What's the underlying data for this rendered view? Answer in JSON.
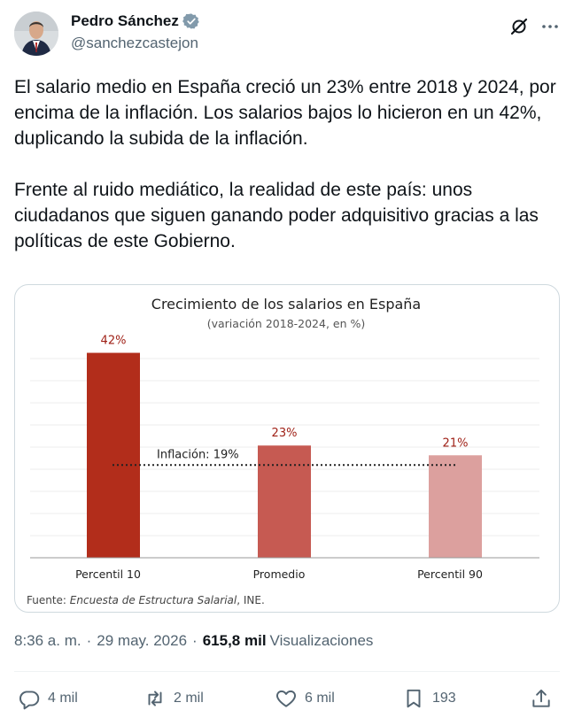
{
  "author": {
    "display_name": "Pedro Sánchez",
    "handle": "@sanchezcastejon"
  },
  "icons": {
    "verified": "verified-badge-icon",
    "grok": "grok-icon",
    "more": "more-icon",
    "reply": "reply-icon",
    "repost": "repost-icon",
    "like": "like-icon",
    "bookmark": "bookmark-icon",
    "share": "share-icon"
  },
  "tweet": {
    "paragraph1": "El salario medio en España creció un 23% entre 2018 y 2024, por encima de la inflación. Los salarios bajos lo hicieron en un 42%, duplicando la subida de la inflación.",
    "paragraph2": "Frente al ruido mediático, la realidad de este país: unos ciudadanos que siguen ganando poder adquisitivo gracias a las políticas de este Gobierno."
  },
  "chart_data": {
    "type": "bar",
    "title": "Crecimiento de los salarios en España",
    "subtitle": "(variación 2018-2024, en %)",
    "categories": [
      "Percentil 10",
      "Promedio",
      "Percentil 90"
    ],
    "values": [
      42,
      23,
      21
    ],
    "value_labels": [
      "42%",
      "23%",
      "21%"
    ],
    "bar_colors": [
      "#b22d1b",
      "#c65a52",
      "#dca09e"
    ],
    "label_color": "#9e1e14",
    "reference_line": {
      "value": 19,
      "label": "Inflación: 19%",
      "style": "dotted"
    },
    "ylim": [
      0,
      45
    ],
    "grid": true,
    "source_prefix": "Fuente: ",
    "source_italic": "Encuesta de Estructura Salarial",
    "source_suffix": ", INE."
  },
  "meta": {
    "time": "8:36 a. m.",
    "separator": "·",
    "date": "29 may. 2026",
    "views_count": "615,8 mil",
    "views_label": "Visualizaciones"
  },
  "actions": {
    "replies": "4 mil",
    "reposts": "2 mil",
    "likes": "6 mil",
    "bookmarks": "193"
  }
}
